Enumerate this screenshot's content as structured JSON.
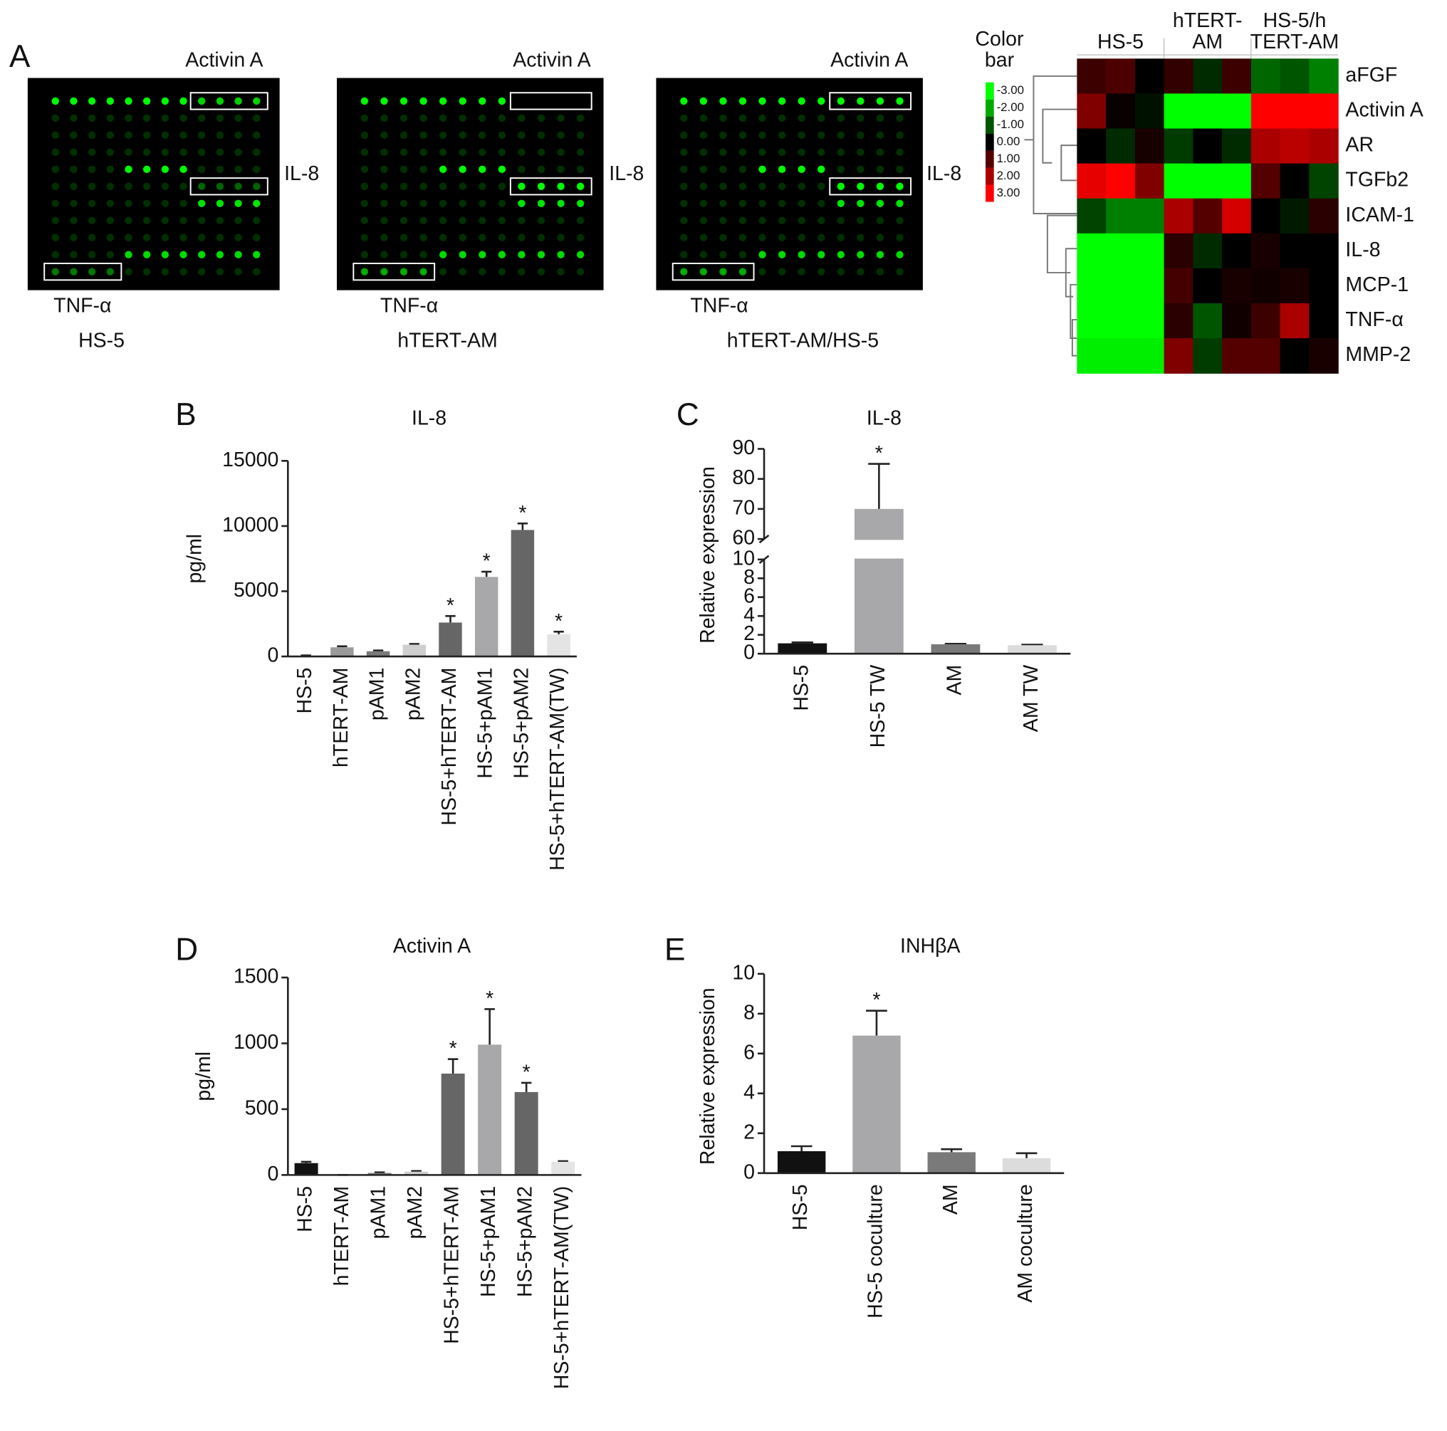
{
  "arrays": [
    {
      "name": "HS-5",
      "labels": [
        "Activin A",
        "IL-8",
        "TNF-α"
      ]
    },
    {
      "name": "hTERT-AM",
      "labels": [
        "Activin A",
        "IL-8",
        "TNF-α"
      ]
    },
    {
      "name": "hTERT-AM/HS-5",
      "labels": [
        "Activin A",
        "IL-8",
        "TNF-α"
      ]
    }
  ],
  "chart_data": [
    {
      "type": "heatmap",
      "panel": "A",
      "colorbar_title": [
        "Color",
        "bar"
      ],
      "column_groups": [
        [
          "HS-5"
        ],
        [
          "hTERT-",
          "AM"
        ],
        [
          "HS-5/h",
          "TERT-AM"
        ]
      ],
      "rows": [
        "aFGF",
        "Activin A",
        "AR",
        "TGFb2",
        "ICAM-1",
        "IL-8",
        "MCP-1",
        "TNF-α",
        "MMP-2"
      ],
      "values": [
        [
          0.7,
          0.9,
          0,
          0.6,
          -0.5,
          0.7,
          -1.2,
          -1,
          -1.5
        ],
        [
          1.5,
          0.1,
          -0.2,
          -3,
          -3,
          -3,
          3,
          3,
          3
        ],
        [
          0,
          -0.5,
          0.3,
          -0.7,
          0,
          -0.5,
          2,
          2.2,
          2
        ],
        [
          2.7,
          3,
          1.5,
          -3,
          -3,
          -3,
          1,
          0,
          -0.8
        ],
        [
          -0.8,
          -1.5,
          -1.5,
          2,
          1,
          2.5,
          0,
          -0.3,
          0.5
        ],
        [
          -3,
          -3,
          -3,
          0.5,
          -0.5,
          0,
          0.3,
          0,
          0
        ],
        [
          -3,
          -3,
          -3,
          0.8,
          0,
          0.3,
          0.2,
          0.3,
          0
        ],
        [
          -3,
          -3,
          -3,
          0.5,
          -1,
          0.2,
          0.7,
          2,
          0
        ],
        [
          -2.8,
          -2.8,
          -2.8,
          1.5,
          -0.7,
          1,
          1,
          0,
          0.3
        ]
      ],
      "zlim": [
        -3,
        3
      ],
      "colors": [
        "#00ff00",
        "#000000",
        "#ff0000"
      ],
      "zticks": [
        {
          "value": -3,
          "label": "-3.00"
        },
        {
          "value": -2,
          "label": "-2.00"
        },
        {
          "value": -1,
          "label": "-1.00"
        },
        {
          "value": 0,
          "label": "0.00"
        },
        {
          "value": 1,
          "label": "1.00"
        },
        {
          "value": 2,
          "label": "2.00"
        },
        {
          "value": 3,
          "label": "3.00"
        }
      ]
    },
    {
      "type": "bar",
      "panel": "B",
      "title": "IL-8",
      "y_label": "pg/ml",
      "categories": [
        "HS-5",
        "hTERT-AM",
        "pAM1",
        "pAM2",
        "HS-5+hTERT-AM",
        "HS-5+pAM1",
        "HS-5+pAM2",
        "HS-5+hTERT-AM(TW)"
      ],
      "values": [
        50,
        700,
        400,
        900,
        2600,
        6100,
        9700,
        1700
      ],
      "errors": [
        30,
        80,
        60,
        60,
        500,
        400,
        500,
        200
      ],
      "significance": [
        null,
        null,
        null,
        null,
        "*",
        "*",
        "*",
        "*"
      ],
      "colors": [
        "#111111",
        "#9a9a9a",
        "#7a7a7a",
        "#cfcfcf",
        "#666666",
        "#a8a8ab",
        "#666666",
        "#e4e4e4"
      ],
      "ylim": [
        0,
        15000
      ],
      "yticks": [
        0,
        5000,
        10000,
        15000
      ]
    },
    {
      "type": "bar",
      "panel": "C",
      "title": "IL-8",
      "y_label": "Relative expression",
      "categories": [
        "HS-5",
        "HS-5 TW",
        "AM",
        "AM TW"
      ],
      "values": [
        1.1,
        70,
        1,
        0.9
      ],
      "errors": [
        0.1,
        15,
        0.05,
        0.05
      ],
      "significance": [
        null,
        "*",
        null,
        null
      ],
      "colors": [
        "#111111",
        "#a8a8ab",
        "#7a7a7a",
        "#dcdcdc"
      ],
      "ylim": [
        0,
        90
      ],
      "ybreak": [
        10,
        60
      ],
      "yticks": [
        0,
        2,
        4,
        6,
        8,
        10,
        60,
        70,
        80,
        90
      ]
    },
    {
      "type": "bar",
      "panel": "D",
      "title": "Activin A",
      "y_label": "pg/ml",
      "categories": [
        "HS-5",
        "hTERT-AM",
        "pAM1",
        "pAM2",
        "HS-5+hTERT-AM",
        "HS-5+pAM1",
        "HS-5+pAM2",
        "HS-5+hTERT-AM(TW)"
      ],
      "values": [
        90,
        0,
        15,
        25,
        770,
        990,
        630,
        100
      ],
      "errors": [
        10,
        0,
        5,
        5,
        110,
        270,
        70,
        5
      ],
      "significance": [
        null,
        null,
        null,
        null,
        "*",
        "*",
        "*",
        null
      ],
      "colors": [
        "#111111",
        "#9a9a9a",
        "#7a7a7a",
        "#cfcfcf",
        "#666666",
        "#a8a8ab",
        "#666666",
        "#e4e4e4"
      ],
      "ylim": [
        0,
        1500
      ],
      "yticks": [
        0,
        500,
        1000,
        1500
      ]
    },
    {
      "type": "bar",
      "panel": "E",
      "title": "INHβA",
      "y_label": "Relative expression",
      "categories": [
        "HS-5",
        "HS-5 coculture",
        "AM",
        "AM coculture"
      ],
      "values": [
        1.1,
        6.9,
        1.05,
        0.75
      ],
      "errors": [
        0.25,
        1.25,
        0.15,
        0.25
      ],
      "significance": [
        null,
        "*",
        null,
        null
      ],
      "colors": [
        "#111111",
        "#a8a8ab",
        "#7a7a7a",
        "#dcdcdc"
      ],
      "ylim": [
        0,
        10
      ],
      "yticks": [
        0,
        2,
        4,
        6,
        8,
        10
      ]
    }
  ]
}
